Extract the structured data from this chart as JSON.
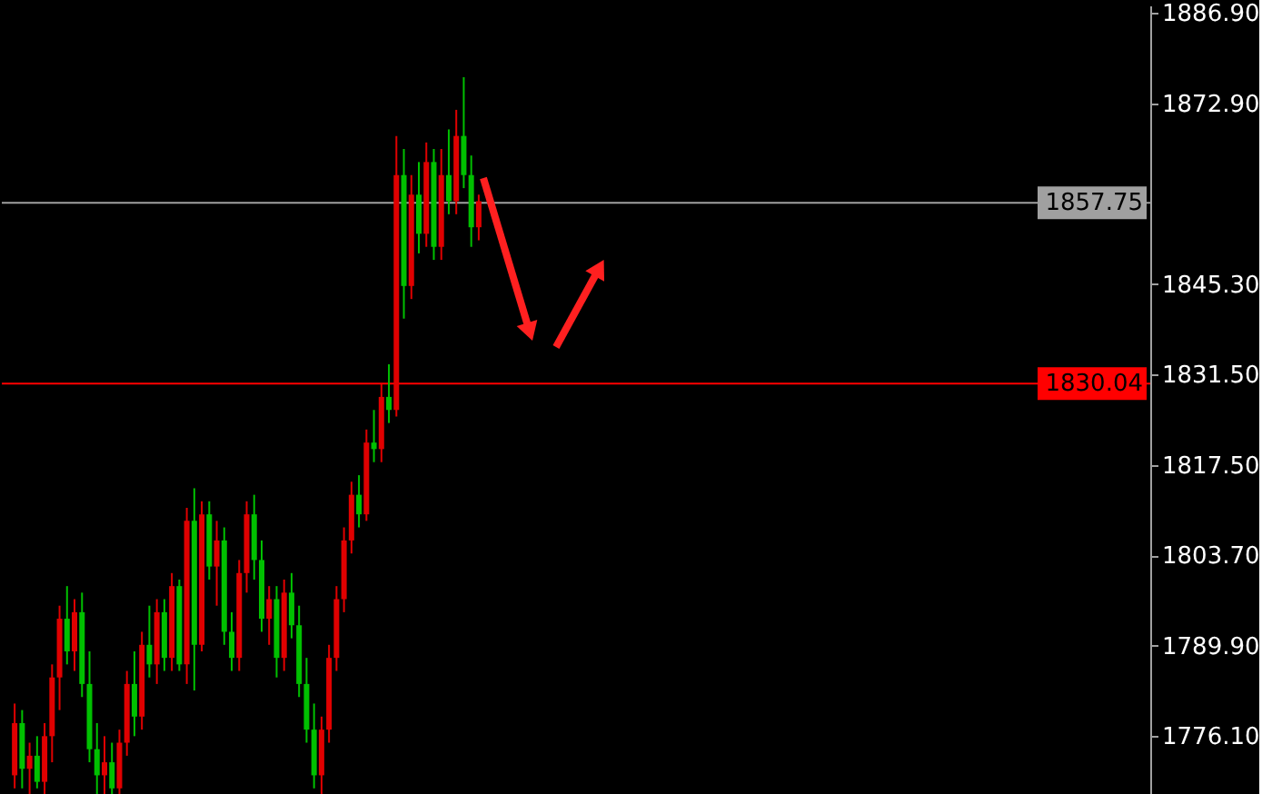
{
  "chart_data": {
    "type": "candlestick",
    "categories": [
      null,
      null,
      null,
      null,
      null,
      null,
      null,
      null,
      null,
      null,
      null,
      null,
      null,
      null,
      null,
      null,
      null,
      null,
      null,
      null,
      null,
      null,
      null,
      null,
      null,
      null,
      null,
      null,
      null,
      null,
      null,
      null,
      null,
      null,
      null,
      null,
      null,
      null,
      null,
      null,
      null,
      null,
      null,
      null,
      null,
      null,
      null,
      null,
      null,
      null,
      null,
      null,
      null,
      null,
      null,
      null,
      null,
      null,
      null,
      null,
      null,
      null,
      null,
      null,
      null,
      null,
      null,
      null,
      null,
      null,
      null,
      null,
      null,
      null,
      null,
      null,
      null,
      null,
      null,
      null,
      null,
      null,
      null,
      null,
      null,
      null,
      null,
      null,
      null,
      null,
      null,
      null,
      null,
      null,
      null,
      null,
      null,
      null,
      null,
      null,
      null,
      null,
      null,
      null,
      null,
      null,
      null,
      null,
      null,
      null,
      null,
      null,
      null,
      null,
      null,
      null,
      null,
      null,
      null,
      null,
      null,
      null,
      null,
      null,
      null,
      null,
      null,
      null,
      null,
      null,
      null,
      null,
      null,
      null,
      null,
      null,
      null,
      null,
      null,
      null,
      null,
      null,
      null,
      null,
      null,
      null,
      null,
      null,
      null,
      null,
      null
    ],
    "ohlc": [
      [
        1770,
        1781,
        1768,
        1778
      ],
      [
        1778,
        1780,
        1768,
        1771
      ],
      [
        1771,
        1775,
        1767,
        1773
      ],
      [
        1773,
        1776,
        1768,
        1769
      ],
      [
        1769,
        1778,
        1767,
        1776
      ],
      [
        1776,
        1787,
        1772,
        1785
      ],
      [
        1785,
        1796,
        1780,
        1794
      ],
      [
        1794,
        1799,
        1787,
        1789
      ],
      [
        1789,
        1797,
        1786,
        1795
      ],
      [
        1795,
        1798,
        1782,
        1784
      ],
      [
        1784,
        1789,
        1772,
        1774
      ],
      [
        1774,
        1778,
        1767,
        1770
      ],
      [
        1770,
        1776,
        1767,
        1772
      ],
      [
        1772,
        1775,
        1767,
        1768
      ],
      [
        1768,
        1777,
        1767,
        1775
      ],
      [
        1775,
        1786,
        1773,
        1784
      ],
      [
        1784,
        1789,
        1776,
        1779
      ],
      [
        1779,
        1792,
        1777,
        1790
      ],
      [
        1790,
        1796,
        1785,
        1787
      ],
      [
        1787,
        1797,
        1784,
        1795
      ],
      [
        1795,
        1797,
        1786,
        1788
      ],
      [
        1788,
        1801,
        1786,
        1799
      ],
      [
        1799,
        1800,
        1786,
        1787
      ],
      [
        1787,
        1811,
        1784,
        1809
      ],
      [
        1809,
        1814,
        1783,
        1790
      ],
      [
        1790,
        1812,
        1789,
        1810
      ],
      [
        1810,
        1812,
        1800,
        1802
      ],
      [
        1802,
        1809,
        1796,
        1806
      ],
      [
        1806,
        1808,
        1790,
        1792
      ],
      [
        1792,
        1795,
        1786,
        1788
      ],
      [
        1788,
        1803,
        1786,
        1801
      ],
      [
        1801,
        1812,
        1798,
        1810
      ],
      [
        1810,
        1813,
        1800,
        1803
      ],
      [
        1803,
        1806,
        1792,
        1794
      ],
      [
        1794,
        1799,
        1790,
        1797
      ],
      [
        1797,
        1799,
        1785,
        1788
      ],
      [
        1788,
        1800,
        1786,
        1798
      ],
      [
        1798,
        1801,
        1791,
        1793
      ],
      [
        1793,
        1796,
        1782,
        1784
      ],
      [
        1784,
        1788,
        1775,
        1777
      ],
      [
        1777,
        1781,
        1768,
        1770
      ],
      [
        1770,
        1779,
        1767,
        1777
      ],
      [
        1777,
        1790,
        1775,
        1788
      ],
      [
        1788,
        1799,
        1786,
        1797
      ],
      [
        1797,
        1808,
        1795,
        1806
      ],
      [
        1806,
        1815,
        1804,
        1813
      ],
      [
        1813,
        1816,
        1808,
        1810
      ],
      [
        1810,
        1823,
        1809,
        1821
      ],
      [
        1821,
        1826,
        1818,
        1820
      ],
      [
        1820,
        1830,
        1818,
        1828
      ],
      [
        1828,
        1833,
        1824,
        1826
      ],
      [
        1826,
        1868,
        1825,
        1862
      ],
      [
        1862,
        1866,
        1840,
        1845
      ],
      [
        1845,
        1862,
        1843,
        1859
      ],
      [
        1859,
        1864,
        1850,
        1853
      ],
      [
        1853,
        1867,
        1851,
        1864
      ],
      [
        1864,
        1866,
        1849,
        1851
      ],
      [
        1851,
        1866,
        1849,
        1862
      ],
      [
        1862,
        1869,
        1856,
        1858
      ],
      [
        1858,
        1872,
        1856,
        1868
      ],
      [
        1868,
        1877,
        1860,
        1862
      ],
      [
        1862,
        1865,
        1851,
        1854
      ],
      [
        1854,
        1859,
        1852,
        1858
      ],
      null,
      null,
      null,
      null,
      null,
      null,
      null,
      null,
      null,
      null,
      null,
      null,
      null,
      null,
      null,
      null,
      null,
      null,
      null,
      null,
      null,
      null,
      null,
      null,
      null,
      null,
      null,
      null,
      null,
      null,
      null,
      null,
      null,
      null,
      null,
      null,
      null,
      null,
      null,
      null,
      null,
      null,
      null,
      null,
      null,
      null,
      null,
      null,
      null,
      null,
      null,
      null,
      null,
      null,
      null,
      null,
      null,
      null,
      null,
      null,
      null,
      null,
      null,
      null,
      null,
      null,
      null,
      null,
      null,
      null,
      null,
      null,
      null,
      null,
      null,
      null,
      null,
      null,
      null,
      null,
      null,
      null,
      null,
      null,
      null,
      null,
      null,
      null
    ],
    "colors": [
      "#e00000",
      "#00c000",
      "#e00000",
      "#00c000",
      "#e00000",
      "#e00000",
      "#e00000",
      "#00c000",
      "#e00000",
      "#00c000",
      "#00c000",
      "#00c000",
      "#e00000",
      "#00c000",
      "#e00000",
      "#e00000",
      "#00c000",
      "#e00000",
      "#00c000",
      "#e00000",
      "#00c000",
      "#e00000",
      "#00c000",
      "#e00000",
      "#00c000",
      "#e00000",
      "#00c000",
      "#e00000",
      "#00c000",
      "#00c000",
      "#e00000",
      "#e00000",
      "#00c000",
      "#00c000",
      "#e00000",
      "#00c000",
      "#e00000",
      "#00c000",
      "#00c000",
      "#00c000",
      "#00c000",
      "#e00000",
      "#e00000",
      "#e00000",
      "#e00000",
      "#e00000",
      "#00c000",
      "#e00000",
      "#00c000",
      "#e00000",
      "#00c000",
      "#e00000",
      "#00c000",
      "#e00000",
      "#00c000",
      "#e00000",
      "#00c000",
      "#e00000",
      "#00c000",
      "#e00000",
      "#00c000",
      "#00c000",
      "#e00000",
      null,
      null,
      null,
      null,
      null,
      null,
      null,
      null,
      null,
      null,
      null,
      null,
      null,
      null,
      null,
      null,
      null,
      null,
      null,
      null,
      null,
      null,
      null,
      null,
      null,
      null,
      null,
      null,
      null,
      null,
      null,
      null,
      null,
      null,
      null,
      null,
      null,
      null,
      null,
      null,
      null,
      null,
      null,
      null,
      null,
      null,
      null,
      null,
      null,
      null,
      null,
      null,
      null,
      null,
      null,
      null,
      null,
      null,
      null,
      null,
      null,
      null,
      null,
      null,
      null,
      null,
      null,
      null,
      null,
      null,
      null,
      null,
      null,
      null,
      null,
      null,
      null,
      null,
      null,
      null,
      null,
      null,
      null,
      null,
      null,
      null,
      null,
      null
    ],
    "ylim": [
      1766.3,
      1888.0
    ],
    "yticks": [
      {
        "value": 1886.9,
        "label": "1886.90"
      },
      {
        "value": 1872.9,
        "label": "1872.90"
      },
      {
        "value": 1845.3,
        "label": "1845.30"
      },
      {
        "value": 1831.5,
        "label": "1831.50"
      },
      {
        "value": 1817.5,
        "label": "1817.50"
      },
      {
        "value": 1803.7,
        "label": "1803.70"
      },
      {
        "value": 1789.9,
        "label": "1789.90"
      },
      {
        "value": 1776.1,
        "label": "1776.10"
      }
    ],
    "ref_lines": [
      {
        "axis": "y",
        "value": 1857.75,
        "label": "1857.75",
        "color": "#a0a0a0"
      },
      {
        "axis": "y",
        "value": 1830.04,
        "label": "1830.04",
        "color": "#ff0000"
      }
    ],
    "tick_labels": "y",
    "grid": false
  }
}
